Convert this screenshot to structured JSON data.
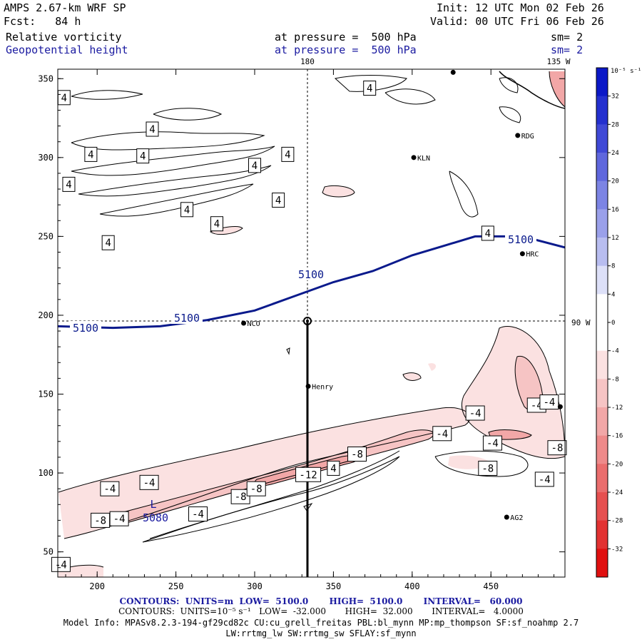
{
  "header": {
    "model": "AMPS 2.67-km WRF SP",
    "forecast": "Fcst:   84 h",
    "init": "Init: 12 UTC Mon 02 Feb 26",
    "valid": "Valid: 00 UTC Fri 06 Feb 26",
    "field1_name": "Relative vorticity",
    "field1_level": "at pressure =  500 hPa",
    "field1_sm": "sm= 2",
    "field2_name": "Geopotential height",
    "field2_level": "at pressure =  500 hPa",
    "field2_sm": "sm= 2"
  },
  "footer": {
    "line1": "CONTOURS:  UNITS=m  LOW=  5100.0       HIGH=  5100.0       INTERVAL=   60.000",
    "line2": "CONTOURS:  UNITS=10⁻⁵ s⁻¹   LOW=  -32.000       HIGH=  32.000       INTERVAL=   4.0000",
    "line3": "Model Info: MPASv8.2.3-194-gf29cd82c CU:cu_grell_freitas PBL:bl_mynn MP:mp_thompson SF:sf_noahmp 2.7",
    "line4": "LW:rrtmg_lw SW:rrtmg_sw SFLAY:sf_mynn"
  },
  "colors": {
    "height_contour": "#0a1a8c",
    "vort_contour": "#000000",
    "text_blue": "#1a1aa0"
  },
  "chart_data": {
    "type": "contour-map",
    "title": "Relative vorticity / Geopotential height at 500 hPa",
    "x_ticks": [
      200,
      250,
      300,
      350,
      400,
      450
    ],
    "y_ticks": [
      50,
      100,
      150,
      200,
      250,
      300,
      350
    ],
    "xlim": [
      175,
      497
    ],
    "ylim": [
      34,
      356
    ],
    "meridian_labels": [
      "180",
      "135 W",
      "90 W"
    ],
    "stations": [
      {
        "name": "KLN",
        "x": 401,
        "y": 300
      },
      {
        "name": "RDG",
        "x": 467,
        "y": 314
      },
      {
        "name": "HRC",
        "x": 470,
        "y": 239
      },
      {
        "name": "NCO",
        "x": 293,
        "y": 195
      },
      {
        "name": "Henry",
        "x": 334,
        "y": 155
      },
      {
        "name": "AG2",
        "x": 460,
        "y": 72
      },
      {
        "name": "",
        "x": 426,
        "y": 354
      },
      {
        "name": "",
        "x": 494,
        "y": 142
      }
    ],
    "height_contour": {
      "value": 5100,
      "units": "m",
      "labels": [
        "5100",
        "5100",
        "5100",
        "5100"
      ],
      "low_label": "L",
      "low_value": "5080",
      "path": [
        [
          175,
          193
        ],
        [
          210,
          192
        ],
        [
          240,
          193
        ],
        [
          270,
          197
        ],
        [
          300,
          203
        ],
        [
          325,
          212
        ],
        [
          350,
          221
        ],
        [
          375,
          228
        ],
        [
          400,
          238
        ],
        [
          420,
          244
        ],
        [
          440,
          250
        ],
        [
          470,
          250
        ],
        [
          497,
          243
        ]
      ]
    },
    "vorticity_labels": [
      {
        "text": "4",
        "x": 179,
        "y": 338
      },
      {
        "text": "4",
        "x": 235,
        "y": 318
      },
      {
        "text": "4",
        "x": 229,
        "y": 301
      },
      {
        "text": "4",
        "x": 300,
        "y": 295
      },
      {
        "text": "4",
        "x": 182,
        "y": 283
      },
      {
        "text": "4",
        "x": 315,
        "y": 273
      },
      {
        "text": "4",
        "x": 257,
        "y": 267
      },
      {
        "text": "4",
        "x": 196,
        "y": 302
      },
      {
        "text": "4",
        "x": 276,
        "y": 258
      },
      {
        "text": "4",
        "x": 207,
        "y": 246
      },
      {
        "text": "4",
        "x": 373,
        "y": 344
      },
      {
        "text": "4",
        "x": 321,
        "y": 302
      },
      {
        "text": "4",
        "x": 448,
        "y": 252
      },
      {
        "text": "4",
        "x": 350,
        "y": 103
      },
      {
        "text": "-4",
        "x": 233,
        "y": 94
      },
      {
        "text": "-4",
        "x": 208,
        "y": 90
      },
      {
        "text": "-4",
        "x": 214,
        "y": 71
      },
      {
        "text": "-4",
        "x": 264,
        "y": 74
      },
      {
        "text": "-4",
        "x": 177,
        "y": 42
      },
      {
        "text": "-4",
        "x": 419,
        "y": 125
      },
      {
        "text": "-4",
        "x": 440,
        "y": 138
      },
      {
        "text": "-4",
        "x": 451,
        "y": 119
      },
      {
        "text": "-4",
        "x": 479,
        "y": 143
      },
      {
        "text": "-4",
        "x": 487,
        "y": 145
      },
      {
        "text": "-4",
        "x": 484,
        "y": 96
      },
      {
        "text": "-8",
        "x": 291,
        "y": 85
      },
      {
        "text": "-8",
        "x": 301,
        "y": 90
      },
      {
        "text": "-8",
        "x": 202,
        "y": 70
      },
      {
        "text": "-8",
        "x": 365,
        "y": 112
      },
      {
        "text": "-8",
        "x": 448,
        "y": 103
      },
      {
        "text": "-8",
        "x": 492,
        "y": 116
      },
      {
        "text": "-12",
        "x": 334,
        "y": 99
      }
    ],
    "colorbar": {
      "units": "10⁻⁵ s⁻¹",
      "levels": [
        "32",
        "28",
        "24",
        "20",
        "16",
        "12",
        "8",
        "4",
        "0",
        "-4",
        "-8",
        "-12",
        "-16",
        "-20",
        "-24",
        "-28",
        "-32"
      ],
      "range": [
        -36,
        36
      ],
      "positive_colors": [
        "#ffffff",
        "#dde0f8",
        "#b8bdf0",
        "#9aa0ea",
        "#7c84e4",
        "#5f67dd",
        "#4049d6",
        "#2430cf",
        "#0b18c7"
      ],
      "negative_colors": [
        "#ffffff",
        "#fbe1e1",
        "#f6c4c4",
        "#f2a7a7",
        "#ee8a8a",
        "#ea6d6d",
        "#e65050",
        "#e23232",
        "#e01010"
      ]
    }
  }
}
